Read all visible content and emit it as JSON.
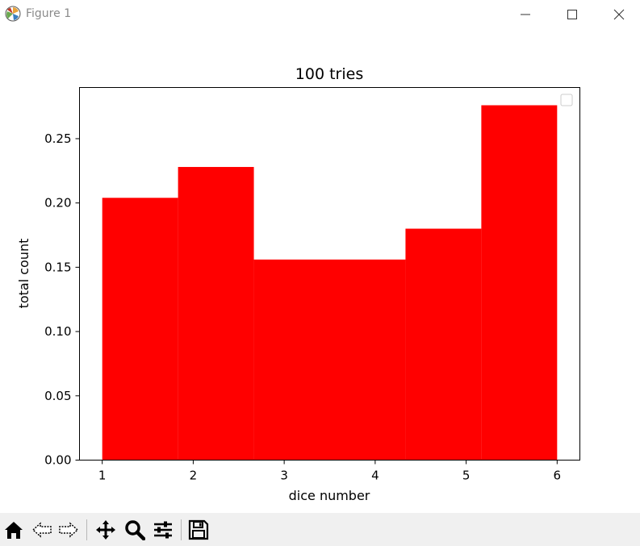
{
  "window": {
    "title": "Figure 1"
  },
  "toolbar": {
    "tools": [
      {
        "name": "home-icon"
      },
      {
        "name": "back-icon"
      },
      {
        "name": "forward-icon"
      },
      {
        "name": "pan-icon"
      },
      {
        "name": "zoom-icon"
      },
      {
        "name": "configure-subplots-icon"
      },
      {
        "name": "save-icon"
      }
    ]
  },
  "chart_data": {
    "type": "bar",
    "title": "100 tries",
    "xlabel": "dice number",
    "ylabel": "total count",
    "bin_edges": [
      1.0,
      1.8333,
      2.6667,
      3.5,
      4.3333,
      5.1667,
      6.0
    ],
    "values": [
      0.204,
      0.228,
      0.156,
      0.156,
      0.18,
      0.276
    ],
    "xlim": [
      0.75,
      6.25
    ],
    "ylim": [
      0,
      0.2898
    ],
    "xticks": [
      1,
      2,
      3,
      4,
      5,
      6
    ],
    "xtick_labels": [
      "1",
      "2",
      "3",
      "4",
      "5",
      "6"
    ],
    "yticks": [
      0,
      0.05,
      0.1,
      0.15,
      0.2,
      0.25
    ],
    "ytick_labels": [
      "0.00",
      "0.05",
      "0.10",
      "0.15",
      "0.20",
      "0.25"
    ],
    "bar_color": "#ff0000",
    "grid": false,
    "legend": {
      "placement": "upper right",
      "entries": []
    }
  }
}
